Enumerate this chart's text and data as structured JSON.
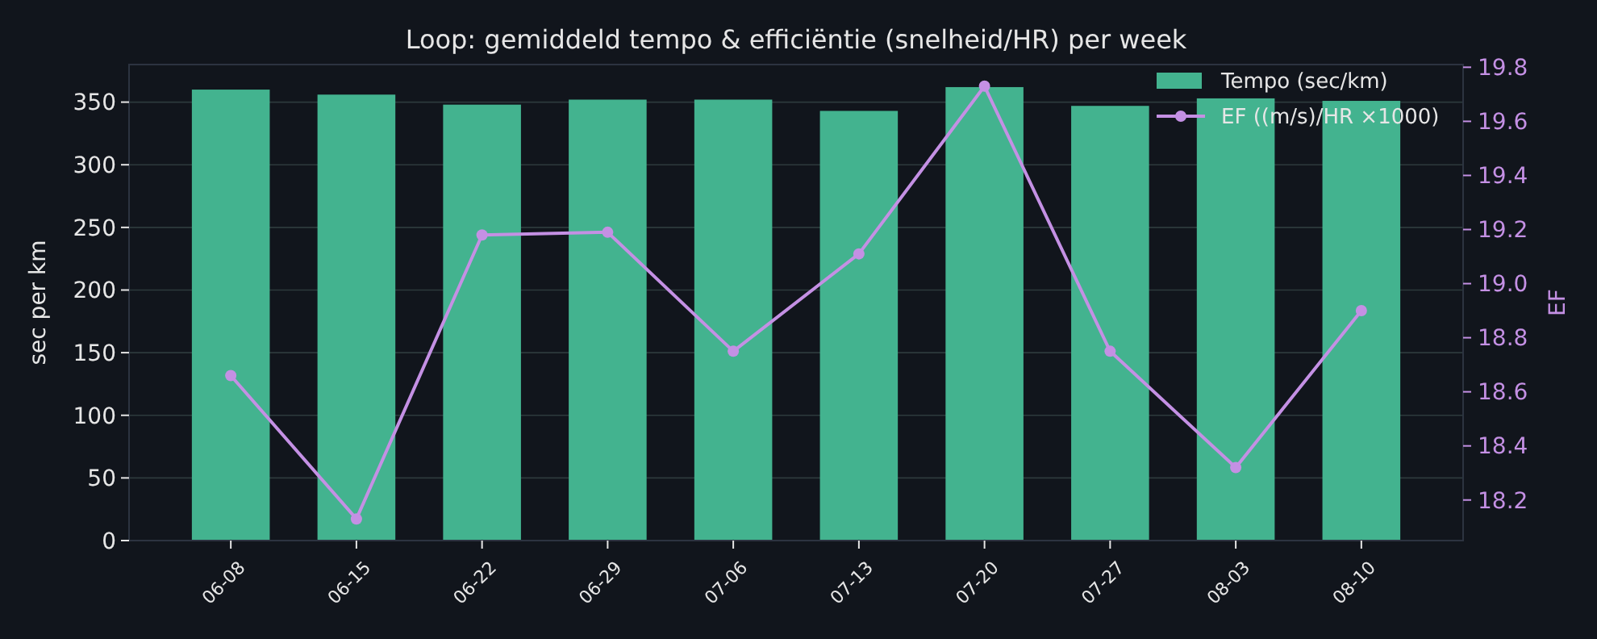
{
  "chart_data": {
    "type": "bar",
    "title": "Loop: gemiddeld tempo & efficiëntie (snelheid/HR) per week",
    "ylabel": "sec per km",
    "y2label": "EF",
    "categories": [
      "06-08",
      "06-15",
      "06-22",
      "06-29",
      "07-06",
      "07-13",
      "07-20",
      "07-27",
      "08-03",
      "08-10"
    ],
    "series": [
      {
        "name": "Tempo (sec/km)",
        "color": "#43b38f",
        "values": [
          360,
          356,
          348,
          352,
          352,
          343,
          362,
          347,
          353,
          351
        ]
      },
      {
        "name": "EF ((m/s)/HR ×1000)",
        "type": "line",
        "axis": "y2",
        "color": "#c490e4",
        "marker": "circle",
        "values": [
          18.66,
          18.13,
          19.18,
          19.19,
          18.75,
          19.11,
          19.73,
          18.75,
          18.32,
          18.9
        ]
      }
    ],
    "ylim": [
      0,
      380
    ],
    "yticks": [
      0,
      50,
      100,
      150,
      200,
      250,
      300,
      350
    ],
    "y2lim": [
      18.05,
      19.81
    ],
    "y2ticks": [
      18.2,
      18.4,
      18.6,
      18.8,
      {
        "value": 19,
        "label": "19.0"
      },
      19.2,
      19.4,
      19.6,
      19.8
    ],
    "grid": "y",
    "legend": "top right"
  }
}
